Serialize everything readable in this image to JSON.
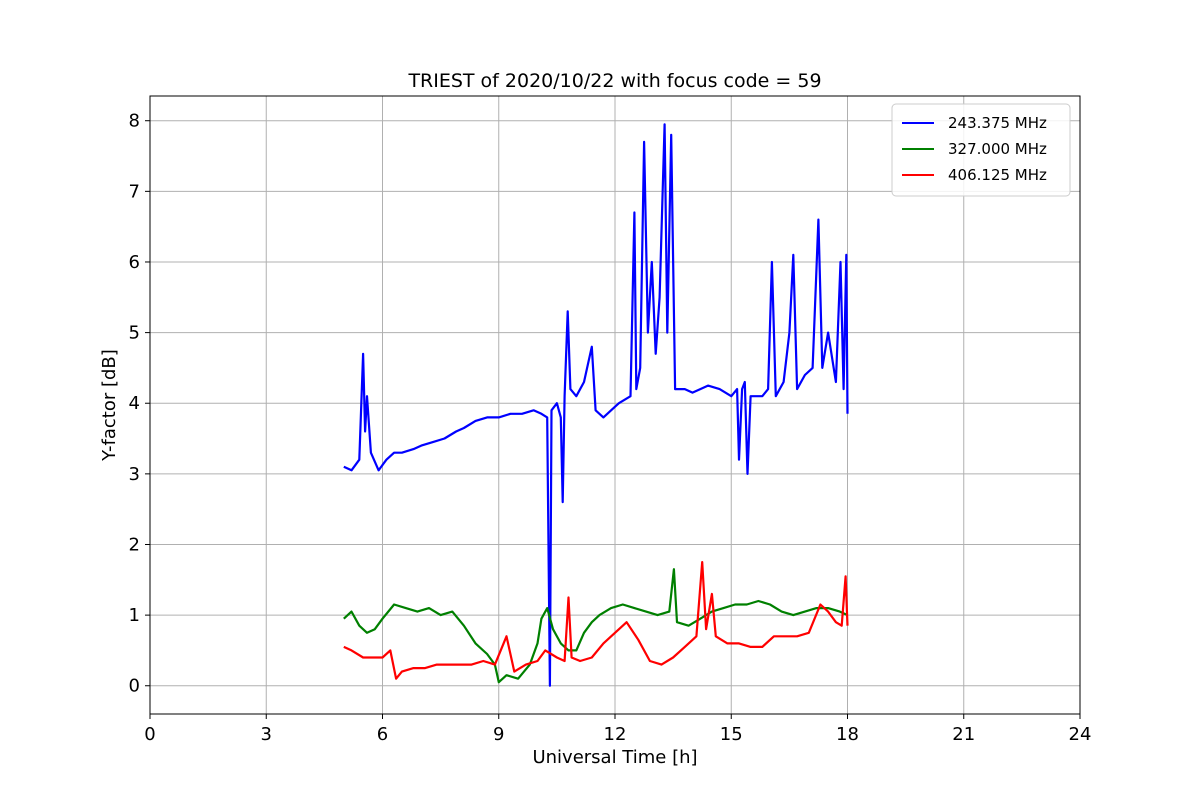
{
  "chart_data": {
    "type": "line",
    "title": "TRIEST of 2020/10/22 with focus code = 59",
    "xlabel": "Universal Time [h]",
    "ylabel": "Y-factor [dB]",
    "xlim": [
      0,
      24
    ],
    "ylim": [
      -0.4,
      8.35
    ],
    "xticks": [
      0,
      3,
      6,
      9,
      12,
      15,
      18,
      21,
      24
    ],
    "yticks": [
      0,
      1,
      2,
      3,
      4,
      5,
      6,
      7,
      8
    ],
    "grid": true,
    "legend_position": "top-right",
    "series": [
      {
        "name": "243.375 MHz",
        "color": "#0000ff",
        "points": [
          [
            5.0,
            3.1
          ],
          [
            5.2,
            3.05
          ],
          [
            5.4,
            3.2
          ],
          [
            5.5,
            4.7
          ],
          [
            5.55,
            3.6
          ],
          [
            5.6,
            4.1
          ],
          [
            5.7,
            3.3
          ],
          [
            5.9,
            3.05
          ],
          [
            6.1,
            3.2
          ],
          [
            6.3,
            3.3
          ],
          [
            6.5,
            3.3
          ],
          [
            6.8,
            3.35
          ],
          [
            7.0,
            3.4
          ],
          [
            7.3,
            3.45
          ],
          [
            7.6,
            3.5
          ],
          [
            7.9,
            3.6
          ],
          [
            8.1,
            3.65
          ],
          [
            8.4,
            3.75
          ],
          [
            8.7,
            3.8
          ],
          [
            9.0,
            3.8
          ],
          [
            9.3,
            3.85
          ],
          [
            9.6,
            3.85
          ],
          [
            9.9,
            3.9
          ],
          [
            10.1,
            3.85
          ],
          [
            10.25,
            3.8
          ],
          [
            10.32,
            0.0
          ],
          [
            10.36,
            3.9
          ],
          [
            10.5,
            4.0
          ],
          [
            10.6,
            3.8
          ],
          [
            10.65,
            2.6
          ],
          [
            10.7,
            4.1
          ],
          [
            10.78,
            5.3
          ],
          [
            10.85,
            4.2
          ],
          [
            11.0,
            4.1
          ],
          [
            11.2,
            4.3
          ],
          [
            11.4,
            4.8
          ],
          [
            11.5,
            3.9
          ],
          [
            11.7,
            3.8
          ],
          [
            11.9,
            3.9
          ],
          [
            12.1,
            4.0
          ],
          [
            12.4,
            4.1
          ],
          [
            12.5,
            6.7
          ],
          [
            12.55,
            4.2
          ],
          [
            12.65,
            4.5
          ],
          [
            12.75,
            7.7
          ],
          [
            12.85,
            5.0
          ],
          [
            12.95,
            6.0
          ],
          [
            13.05,
            4.7
          ],
          [
            13.15,
            5.5
          ],
          [
            13.28,
            7.95
          ],
          [
            13.35,
            5.0
          ],
          [
            13.45,
            7.8
          ],
          [
            13.55,
            4.2
          ],
          [
            13.8,
            4.2
          ],
          [
            14.0,
            4.15
          ],
          [
            14.2,
            4.2
          ],
          [
            14.4,
            4.25
          ],
          [
            14.7,
            4.2
          ],
          [
            15.0,
            4.1
          ],
          [
            15.15,
            4.2
          ],
          [
            15.2,
            3.2
          ],
          [
            15.28,
            4.2
          ],
          [
            15.35,
            4.3
          ],
          [
            15.42,
            3.0
          ],
          [
            15.5,
            4.1
          ],
          [
            15.8,
            4.1
          ],
          [
            15.95,
            4.2
          ],
          [
            16.05,
            6.0
          ],
          [
            16.15,
            4.1
          ],
          [
            16.35,
            4.3
          ],
          [
            16.5,
            5.0
          ],
          [
            16.6,
            6.1
          ],
          [
            16.7,
            4.2
          ],
          [
            16.9,
            4.4
          ],
          [
            17.1,
            4.5
          ],
          [
            17.25,
            6.6
          ],
          [
            17.35,
            4.5
          ],
          [
            17.5,
            5.0
          ],
          [
            17.7,
            4.3
          ],
          [
            17.82,
            6.0
          ],
          [
            17.9,
            4.2
          ],
          [
            17.97,
            6.1
          ],
          [
            18.0,
            3.85
          ]
        ]
      },
      {
        "name": "327.000 MHz",
        "color": "#008000",
        "points": [
          [
            5.0,
            0.95
          ],
          [
            5.2,
            1.05
          ],
          [
            5.4,
            0.85
          ],
          [
            5.6,
            0.75
          ],
          [
            5.8,
            0.8
          ],
          [
            6.0,
            0.95
          ],
          [
            6.3,
            1.15
          ],
          [
            6.6,
            1.1
          ],
          [
            6.9,
            1.05
          ],
          [
            7.2,
            1.1
          ],
          [
            7.5,
            1.0
          ],
          [
            7.8,
            1.05
          ],
          [
            8.1,
            0.85
          ],
          [
            8.4,
            0.6
          ],
          [
            8.7,
            0.45
          ],
          [
            8.9,
            0.3
          ],
          [
            9.0,
            0.05
          ],
          [
            9.2,
            0.15
          ],
          [
            9.5,
            0.1
          ],
          [
            9.8,
            0.3
          ],
          [
            10.0,
            0.6
          ],
          [
            10.1,
            0.95
          ],
          [
            10.25,
            1.1
          ],
          [
            10.4,
            0.8
          ],
          [
            10.6,
            0.6
          ],
          [
            10.8,
            0.5
          ],
          [
            11.0,
            0.5
          ],
          [
            11.2,
            0.75
          ],
          [
            11.4,
            0.9
          ],
          [
            11.6,
            1.0
          ],
          [
            11.9,
            1.1
          ],
          [
            12.2,
            1.15
          ],
          [
            12.5,
            1.1
          ],
          [
            12.8,
            1.05
          ],
          [
            13.1,
            1.0
          ],
          [
            13.4,
            1.05
          ],
          [
            13.52,
            1.65
          ],
          [
            13.6,
            0.9
          ],
          [
            13.9,
            0.85
          ],
          [
            14.2,
            0.95
          ],
          [
            14.5,
            1.05
          ],
          [
            14.8,
            1.1
          ],
          [
            15.1,
            1.15
          ],
          [
            15.4,
            1.15
          ],
          [
            15.7,
            1.2
          ],
          [
            16.0,
            1.15
          ],
          [
            16.3,
            1.05
          ],
          [
            16.6,
            1.0
          ],
          [
            16.9,
            1.05
          ],
          [
            17.2,
            1.1
          ],
          [
            17.5,
            1.1
          ],
          [
            17.8,
            1.05
          ],
          [
            18.0,
            1.0
          ]
        ]
      },
      {
        "name": "406.125 MHz",
        "color": "#ff0000",
        "points": [
          [
            5.0,
            0.55
          ],
          [
            5.2,
            0.5
          ],
          [
            5.5,
            0.4
          ],
          [
            5.8,
            0.4
          ],
          [
            6.0,
            0.4
          ],
          [
            6.2,
            0.5
          ],
          [
            6.35,
            0.1
          ],
          [
            6.5,
            0.2
          ],
          [
            6.8,
            0.25
          ],
          [
            7.1,
            0.25
          ],
          [
            7.4,
            0.3
          ],
          [
            7.7,
            0.3
          ],
          [
            8.0,
            0.3
          ],
          [
            8.3,
            0.3
          ],
          [
            8.6,
            0.35
          ],
          [
            8.9,
            0.3
          ],
          [
            9.2,
            0.7
          ],
          [
            9.4,
            0.2
          ],
          [
            9.7,
            0.3
          ],
          [
            10.0,
            0.35
          ],
          [
            10.2,
            0.5
          ],
          [
            10.5,
            0.4
          ],
          [
            10.7,
            0.35
          ],
          [
            10.8,
            1.25
          ],
          [
            10.88,
            0.4
          ],
          [
            11.1,
            0.35
          ],
          [
            11.4,
            0.4
          ],
          [
            11.7,
            0.6
          ],
          [
            12.0,
            0.75
          ],
          [
            12.3,
            0.9
          ],
          [
            12.6,
            0.65
          ],
          [
            12.9,
            0.35
          ],
          [
            13.2,
            0.3
          ],
          [
            13.5,
            0.4
          ],
          [
            13.8,
            0.55
          ],
          [
            14.1,
            0.7
          ],
          [
            14.25,
            1.75
          ],
          [
            14.35,
            0.8
          ],
          [
            14.5,
            1.3
          ],
          [
            14.6,
            0.7
          ],
          [
            14.9,
            0.6
          ],
          [
            15.2,
            0.6
          ],
          [
            15.5,
            0.55
          ],
          [
            15.8,
            0.55
          ],
          [
            16.1,
            0.7
          ],
          [
            16.4,
            0.7
          ],
          [
            16.7,
            0.7
          ],
          [
            17.0,
            0.75
          ],
          [
            17.3,
            1.15
          ],
          [
            17.5,
            1.05
          ],
          [
            17.7,
            0.9
          ],
          [
            17.85,
            0.85
          ],
          [
            17.95,
            1.55
          ],
          [
            18.0,
            0.85
          ]
        ]
      }
    ]
  }
}
